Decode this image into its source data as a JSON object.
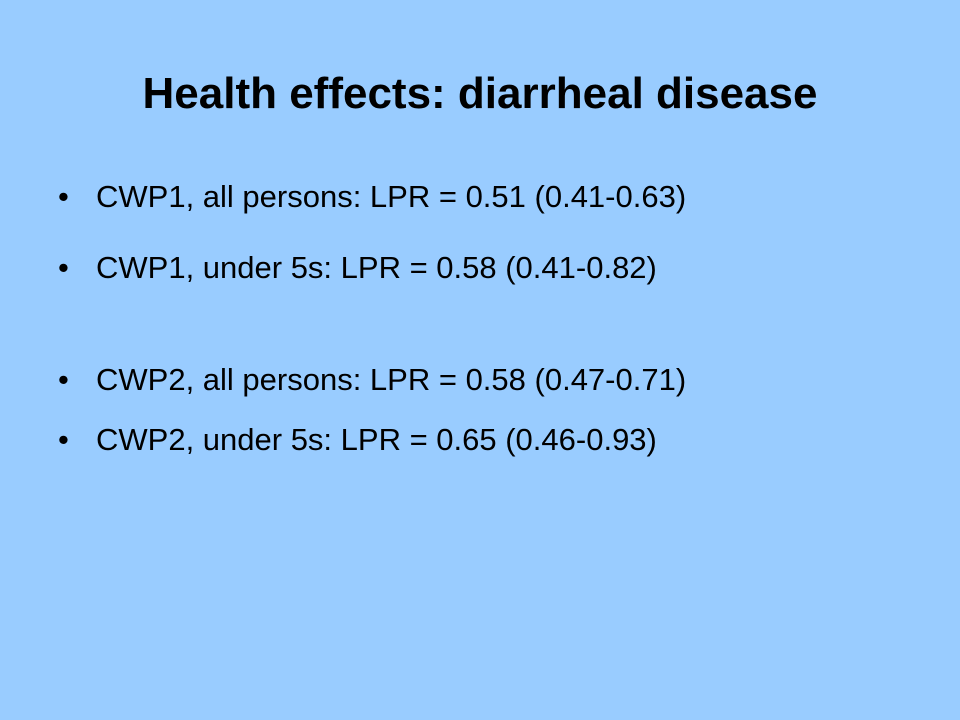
{
  "slide": {
    "title": "Health effects: diarrheal disease",
    "bullet_glyph": "•",
    "bullets": [
      "CWP1, all persons: LPR = 0.51 (0.41-0.63)",
      "CWP1, under 5s: LPR = 0.58 (0.41-0.82)",
      "CWP2, all persons: LPR = 0.58 (0.47-0.71)",
      "CWP2, under 5s: LPR = 0.65 (0.46-0.93)"
    ],
    "background_color": "#99ccff",
    "text_color": "#000000"
  }
}
